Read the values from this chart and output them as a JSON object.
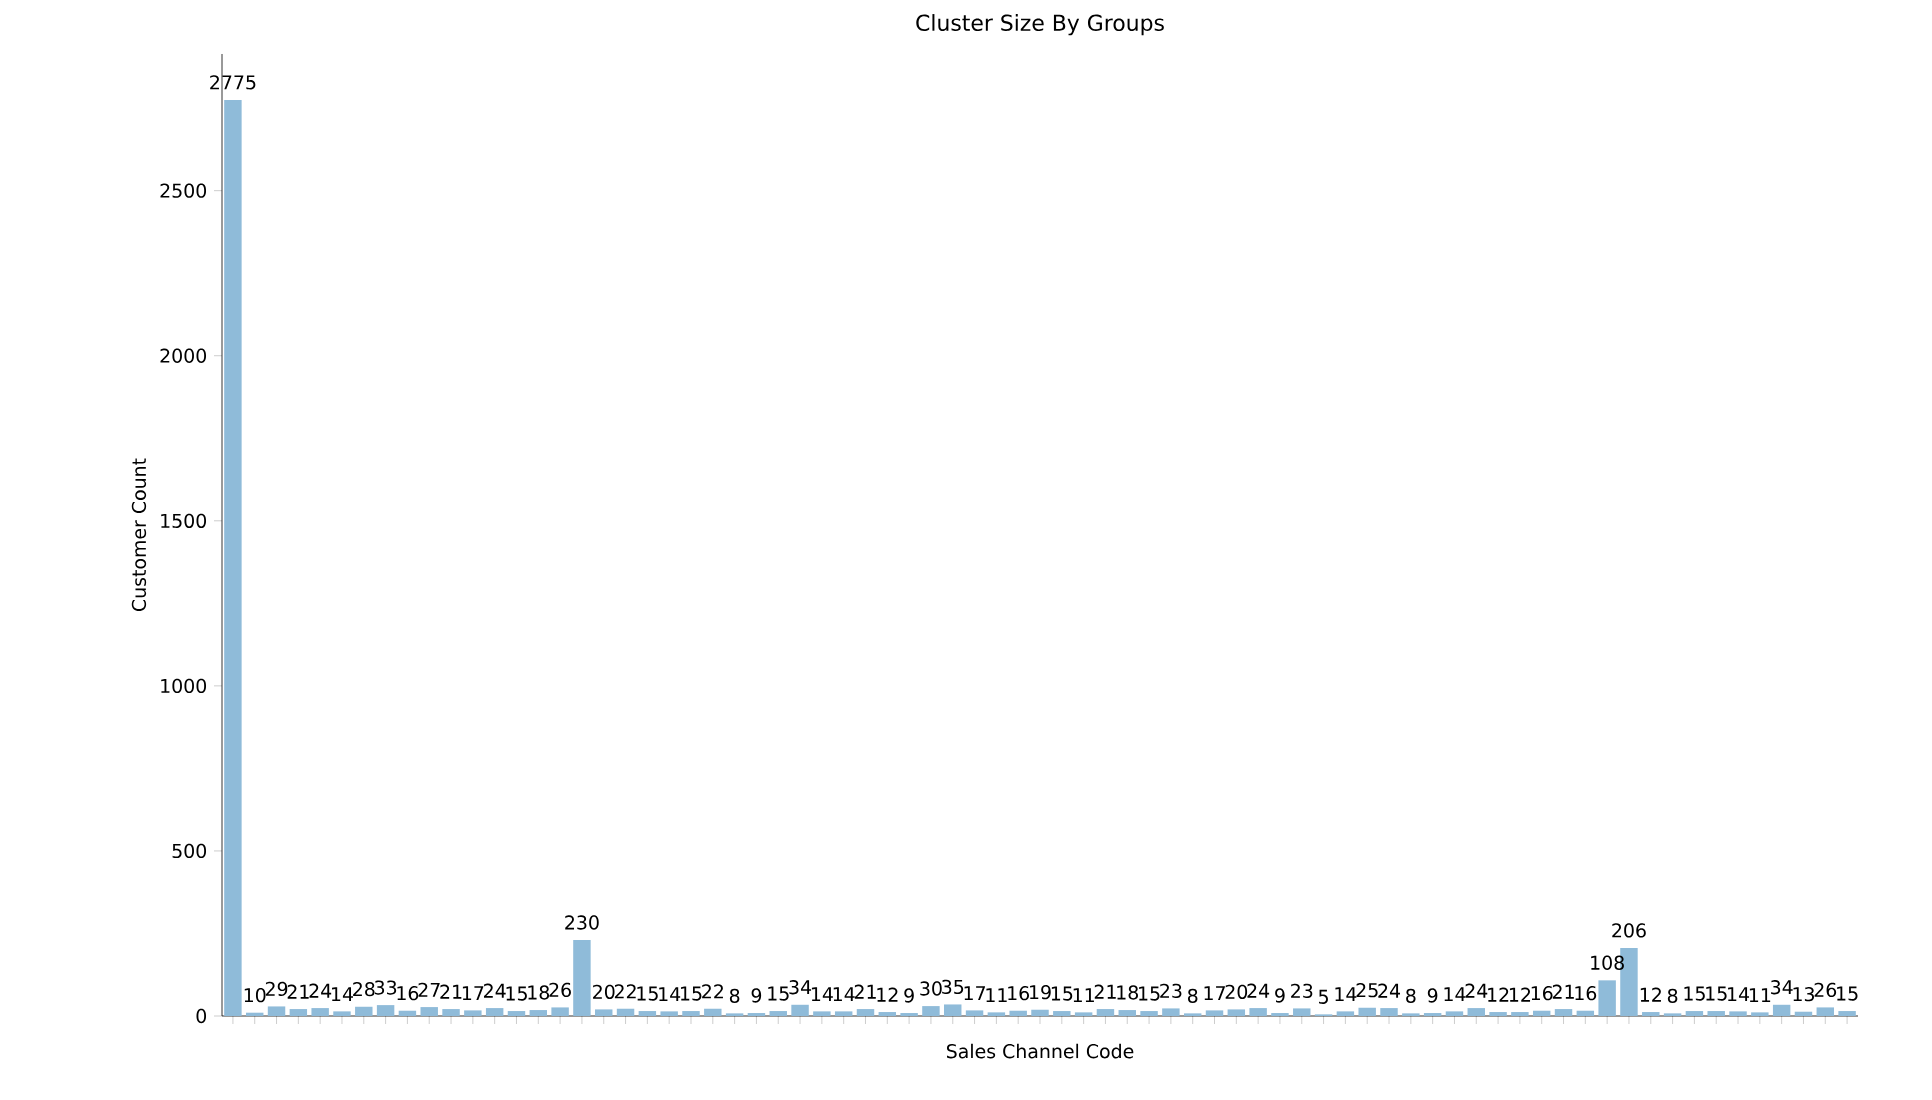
{
  "chart_data": {
    "type": "bar",
    "title": "Cluster Size By Groups",
    "xlabel": "Sales Channel Code",
    "ylabel": "Customer Count",
    "categories": [
      null,
      null,
      null,
      null,
      null,
      null,
      null,
      null,
      null,
      null,
      null,
      null,
      null,
      null,
      null,
      null,
      null,
      null,
      null,
      null,
      null,
      null,
      null,
      null,
      null,
      null,
      null,
      null,
      null,
      null,
      null,
      null,
      null,
      null,
      null,
      null,
      null,
      null,
      null,
      null,
      null,
      null,
      null,
      null,
      null,
      null,
      null,
      null,
      null,
      null,
      null,
      null,
      null,
      null,
      null,
      null,
      null,
      null,
      null,
      null,
      null,
      null,
      null,
      null,
      null,
      null,
      null,
      null,
      null,
      null,
      null,
      null,
      null,
      null,
      null
    ],
    "values": [
      2775,
      10,
      29,
      21,
      24,
      14,
      28,
      33,
      16,
      27,
      21,
      17,
      24,
      15,
      18,
      26,
      230,
      20,
      22,
      15,
      14,
      15,
      22,
      8,
      9,
      15,
      34,
      14,
      14,
      21,
      12,
      9,
      30,
      35,
      17,
      11,
      16,
      19,
      15,
      11,
      21,
      18,
      15,
      23,
      8,
      17,
      20,
      24,
      9,
      23,
      5,
      14,
      25,
      24,
      8,
      9,
      14,
      24,
      12,
      12,
      16,
      21,
      16,
      108,
      206,
      12,
      8,
      15,
      15,
      14,
      11,
      34,
      13,
      26,
      15
    ],
    "color": "#8fbbd9",
    "data_labels": true,
    "ylim": [
      0,
      2914
    ],
    "yticks": [
      0,
      500,
      1000,
      1500,
      2000,
      2500
    ]
  }
}
